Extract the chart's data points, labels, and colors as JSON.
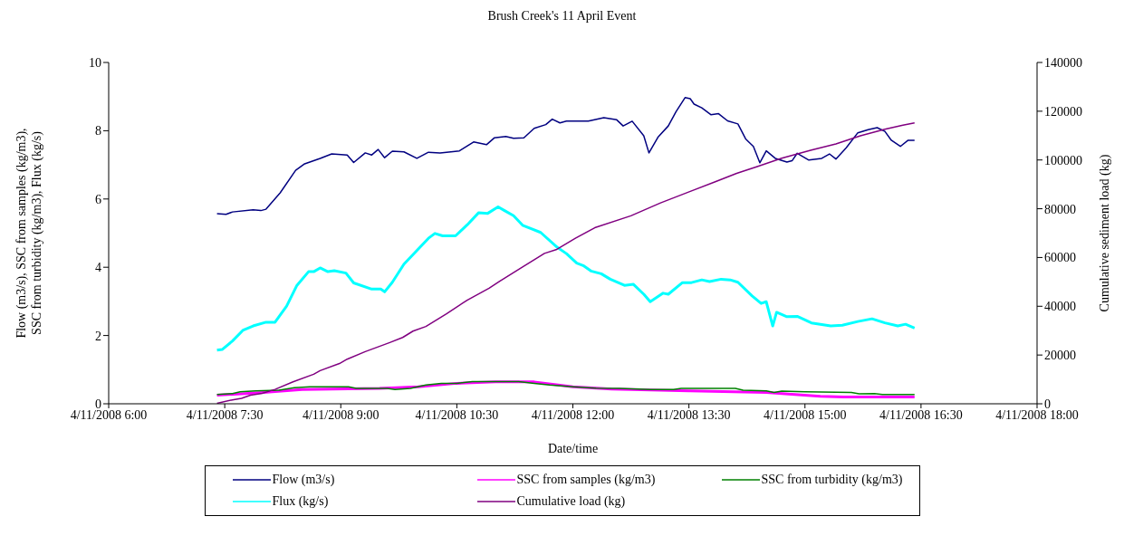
{
  "chart_data": {
    "type": "line",
    "title": "Brush Creek's 11 April Event",
    "xlabel": "Date/time",
    "ylabel": "Flow (m3/s), SSC from samples (kg/m3), SSC from turbidity (kg/m3), Flux (kg/s)",
    "y2label": "Cumulative sediment load (kg)",
    "xlim": [
      "2008-04-11T06:00",
      "2008-04-11T18:00"
    ],
    "xticks": [
      {
        "value": "2008-04-11T06:00",
        "label": "4/11/2008 6:00"
      },
      {
        "value": "2008-04-11T07:30",
        "label": "4/11/2008 7:30"
      },
      {
        "value": "2008-04-11T09:00",
        "label": "4/11/2008 9:00"
      },
      {
        "value": "2008-04-11T10:30",
        "label": "4/11/2008 10:30"
      },
      {
        "value": "2008-04-11T12:00",
        "label": "4/11/2008 12:00"
      },
      {
        "value": "2008-04-11T13:30",
        "label": "4/11/2008 13:30"
      },
      {
        "value": "2008-04-11T15:00",
        "label": "4/11/2008 15:00"
      },
      {
        "value": "2008-04-11T16:30",
        "label": "4/11/2008 16:30"
      },
      {
        "value": "2008-04-11T18:00",
        "label": "4/11/2008 18:00"
      }
    ],
    "ylim": [
      0,
      10
    ],
    "yticks": [
      0,
      2,
      4,
      6,
      8,
      10
    ],
    "y2lim": [
      0,
      140000
    ],
    "y2ticks": [
      0,
      20000,
      40000,
      60000,
      80000,
      100000,
      120000,
      140000
    ],
    "legend": "bottom",
    "series": [
      {
        "name": "Flow (m3/s)",
        "color": "#000080",
        "x": [
          "2008-04-11T07:24",
          "2008-04-11T07:31",
          "2008-04-11T07:36",
          "2008-04-11T07:52",
          "2008-04-11T07:58",
          "2008-04-11T08:02",
          "2008-04-11T08:13",
          "2008-04-11T08:25",
          "2008-04-11T08:32",
          "2008-04-11T08:44",
          "2008-04-11T08:53",
          "2008-04-11T09:05",
          "2008-04-11T09:10",
          "2008-04-11T09:19",
          "2008-04-11T09:24",
          "2008-04-11T09:29",
          "2008-04-11T09:34",
          "2008-04-11T09:40",
          "2008-04-11T09:49",
          "2008-04-11T09:59",
          "2008-04-11T10:08",
          "2008-04-11T10:17",
          "2008-04-11T10:32",
          "2008-04-11T10:43",
          "2008-04-11T10:53",
          "2008-04-11T10:59",
          "2008-04-11T11:08",
          "2008-04-11T11:14",
          "2008-04-11T11:22",
          "2008-04-11T11:30",
          "2008-04-11T11:39",
          "2008-04-11T11:44",
          "2008-04-11T11:50",
          "2008-04-11T11:55",
          "2008-04-11T12:12",
          "2008-04-11T12:24",
          "2008-04-11T12:34",
          "2008-04-11T12:39",
          "2008-04-11T12:46",
          "2008-04-11T12:55",
          "2008-04-11T12:59",
          "2008-04-11T13:06",
          "2008-04-11T13:14",
          "2008-04-11T13:20",
          "2008-04-11T13:27",
          "2008-04-11T13:31",
          "2008-04-11T13:34",
          "2008-04-11T13:40",
          "2008-04-11T13:47",
          "2008-04-11T13:53",
          "2008-04-11T14:00",
          "2008-04-11T14:08",
          "2008-04-11T14:14",
          "2008-04-11T14:20",
          "2008-04-11T14:25",
          "2008-04-11T14:30",
          "2008-04-11T14:37",
          "2008-04-11T14:46",
          "2008-04-11T14:50",
          "2008-04-11T14:54",
          "2008-04-11T15:03",
          "2008-04-11T15:13",
          "2008-04-11T15:19",
          "2008-04-11T15:24",
          "2008-04-11T15:32",
          "2008-04-11T15:41",
          "2008-04-11T15:49",
          "2008-04-11T15:56",
          "2008-04-11T16:02",
          "2008-04-11T16:07",
          "2008-04-11T16:14",
          "2008-04-11T16:20",
          "2008-04-11T16:25"
        ],
        "values": [
          5.57,
          5.55,
          5.62,
          5.68,
          5.66,
          5.7,
          6.18,
          6.84,
          7.03,
          7.19,
          7.32,
          7.29,
          7.07,
          7.35,
          7.29,
          7.45,
          7.21,
          7.4,
          7.38,
          7.19,
          7.37,
          7.35,
          7.41,
          7.67,
          7.59,
          7.79,
          7.83,
          7.78,
          7.79,
          8.07,
          8.18,
          8.34,
          8.23,
          8.28,
          8.28,
          8.38,
          8.32,
          8.14,
          8.28,
          7.85,
          7.35,
          7.81,
          8.14,
          8.56,
          8.97,
          8.94,
          8.78,
          8.67,
          8.47,
          8.5,
          8.29,
          8.2,
          7.76,
          7.54,
          7.06,
          7.41,
          7.19,
          7.08,
          7.12,
          7.34,
          7.14,
          7.19,
          7.32,
          7.17,
          7.5,
          7.94,
          8.03,
          8.09,
          7.98,
          7.72,
          7.54,
          7.72,
          7.72
        ]
      },
      {
        "name": "SSC from samples (kg/m3)",
        "color": "#ff00ff",
        "x": [
          "2008-04-11T07:24",
          "2008-04-11T08:00",
          "2008-04-11T08:30",
          "2008-04-11T09:30",
          "2008-04-11T10:00",
          "2008-04-11T10:30",
          "2008-04-11T11:00",
          "2008-04-11T11:30",
          "2008-04-11T12:00",
          "2008-04-11T12:30",
          "2008-04-11T13:30",
          "2008-04-11T14:30",
          "2008-04-11T15:12",
          "2008-04-11T15:30",
          "2008-04-11T16:25"
        ],
        "values": [
          0.25,
          0.33,
          0.42,
          0.45,
          0.5,
          0.6,
          0.64,
          0.64,
          0.5,
          0.43,
          0.38,
          0.33,
          0.22,
          0.2,
          0.2
        ]
      },
      {
        "name": "SSC from turbidity (kg/m3)",
        "color": "#008000",
        "x": [
          "2008-04-11T07:24",
          "2008-04-11T07:36",
          "2008-04-11T07:42",
          "2008-04-11T07:54",
          "2008-04-11T08:12",
          "2008-04-11T08:24",
          "2008-04-11T08:36",
          "2008-04-11T09:06",
          "2008-04-11T09:12",
          "2008-04-11T09:36",
          "2008-04-11T09:42",
          "2008-04-11T09:54",
          "2008-04-11T10:06",
          "2008-04-11T10:18",
          "2008-04-11T10:30",
          "2008-04-11T10:42",
          "2008-04-11T11:18",
          "2008-04-11T11:30",
          "2008-04-11T11:42",
          "2008-04-11T12:00",
          "2008-04-11T12:18",
          "2008-04-11T12:36",
          "2008-04-11T13:00",
          "2008-04-11T13:18",
          "2008-04-11T13:24",
          "2008-04-11T14:06",
          "2008-04-11T14:12",
          "2008-04-11T14:30",
          "2008-04-11T14:36",
          "2008-04-11T14:42",
          "2008-04-11T15:00",
          "2008-04-11T15:36",
          "2008-04-11T15:42",
          "2008-04-11T15:54",
          "2008-04-11T16:00",
          "2008-04-11T16:25"
        ],
        "values": [
          0.27,
          0.3,
          0.35,
          0.38,
          0.4,
          0.47,
          0.5,
          0.5,
          0.45,
          0.45,
          0.42,
          0.45,
          0.55,
          0.6,
          0.6,
          0.65,
          0.65,
          0.6,
          0.55,
          0.5,
          0.46,
          0.45,
          0.42,
          0.42,
          0.45,
          0.45,
          0.4,
          0.38,
          0.33,
          0.37,
          0.35,
          0.33,
          0.29,
          0.3,
          0.27,
          0.27
        ]
      },
      {
        "name": "Flux (kg/s)",
        "color": "#00ffff",
        "x": [
          "2008-04-11T07:24",
          "2008-04-11T07:28",
          "2008-04-11T07:36",
          "2008-04-11T07:44",
          "2008-04-11T07:52",
          "2008-04-11T08:02",
          "2008-04-11T08:09",
          "2008-04-11T08:18",
          "2008-04-11T08:26",
          "2008-04-11T08:35",
          "2008-04-11T08:39",
          "2008-04-11T08:44",
          "2008-04-11T08:50",
          "2008-04-11T08:55",
          "2008-04-11T09:04",
          "2008-04-11T09:10",
          "2008-04-11T09:24",
          "2008-04-11T09:31",
          "2008-04-11T09:34",
          "2008-04-11T09:40",
          "2008-04-11T09:49",
          "2008-04-11T09:59",
          "2008-04-11T10:08",
          "2008-04-11T10:13",
          "2008-04-11T10:19",
          "2008-04-11T10:29",
          "2008-04-11T10:38",
          "2008-04-11T10:47",
          "2008-04-11T10:54",
          "2008-04-11T11:02",
          "2008-04-11T11:07",
          "2008-04-11T11:14",
          "2008-04-11T11:21",
          "2008-04-11T11:35",
          "2008-04-11T11:48",
          "2008-04-11T11:55",
          "2008-04-11T12:03",
          "2008-04-11T12:08",
          "2008-04-11T12:14",
          "2008-04-11T12:22",
          "2008-04-11T12:29",
          "2008-04-11T12:40",
          "2008-04-11T12:47",
          "2008-04-11T12:55",
          "2008-04-11T13:00",
          "2008-04-11T13:10",
          "2008-04-11T13:14",
          "2008-04-11T13:25",
          "2008-04-11T13:32",
          "2008-04-11T13:40",
          "2008-04-11T13:46",
          "2008-04-11T13:55",
          "2008-04-11T14:02",
          "2008-04-11T14:08",
          "2008-04-11T14:19",
          "2008-04-11T14:26",
          "2008-04-11T14:30",
          "2008-04-11T14:35",
          "2008-04-11T14:38",
          "2008-04-11T14:46",
          "2008-04-11T14:54",
          "2008-04-11T15:05",
          "2008-04-11T15:20",
          "2008-04-11T15:29",
          "2008-04-11T15:41",
          "2008-04-11T15:52",
          "2008-04-11T16:02",
          "2008-04-11T16:12",
          "2008-04-11T16:18",
          "2008-04-11T16:25"
        ],
        "values": [
          1.57,
          1.59,
          1.84,
          2.15,
          2.28,
          2.39,
          2.39,
          2.86,
          3.47,
          3.87,
          3.87,
          3.98,
          3.87,
          3.9,
          3.83,
          3.54,
          3.36,
          3.36,
          3.28,
          3.56,
          4.09,
          4.49,
          4.85,
          4.99,
          4.92,
          4.92,
          5.24,
          5.6,
          5.58,
          5.77,
          5.66,
          5.51,
          5.23,
          5.02,
          4.58,
          4.4,
          4.12,
          4.05,
          3.89,
          3.81,
          3.65,
          3.47,
          3.5,
          3.21,
          2.99,
          3.24,
          3.21,
          3.55,
          3.55,
          3.63,
          3.58,
          3.65,
          3.63,
          3.56,
          3.16,
          2.94,
          2.99,
          2.28,
          2.68,
          2.55,
          2.56,
          2.37,
          2.28,
          2.3,
          2.41,
          2.49,
          2.37,
          2.28,
          2.33,
          2.22
        ]
      },
      {
        "name": "Cumulative load (kg)",
        "color": "#800080",
        "axis": "y2",
        "x": [
          "2008-04-11T07:24",
          "2008-04-11T07:36",
          "2008-04-11T07:43",
          "2008-04-11T07:50",
          "2008-04-11T07:59",
          "2008-04-11T08:09",
          "2008-04-11T08:23",
          "2008-04-11T08:39",
          "2008-04-11T08:44",
          "2008-04-11T08:59",
          "2008-04-11T09:05",
          "2008-04-11T09:19",
          "2008-04-11T09:38",
          "2008-04-11T09:48",
          "2008-04-11T09:56",
          "2008-04-11T10:06",
          "2008-04-11T10:22",
          "2008-04-11T10:38",
          "2008-04-11T10:55",
          "2008-04-11T11:03",
          "2008-04-11T11:21",
          "2008-04-11T11:38",
          "2008-04-11T11:47",
          "2008-04-11T12:02",
          "2008-04-11T12:17",
          "2008-04-11T12:45",
          "2008-04-11T13:08",
          "2008-04-11T13:32",
          "2008-04-11T13:50",
          "2008-04-11T14:07",
          "2008-04-11T14:23",
          "2008-04-11T14:42",
          "2008-04-11T15:05",
          "2008-04-11T15:24",
          "2008-04-11T15:43",
          "2008-04-11T16:02",
          "2008-04-11T16:16",
          "2008-04-11T16:25"
        ],
        "values": [
          200,
          1600,
          2200,
          3500,
          4300,
          5900,
          9000,
          12100,
          13600,
          16500,
          18300,
          21400,
          25100,
          27200,
          29800,
          31700,
          36900,
          42500,
          47400,
          50200,
          56100,
          61700,
          63200,
          67900,
          72200,
          77100,
          82400,
          87300,
          91000,
          94500,
          97300,
          100700,
          104100,
          106600,
          109900,
          112600,
          114300,
          115200
        ]
      }
    ]
  }
}
